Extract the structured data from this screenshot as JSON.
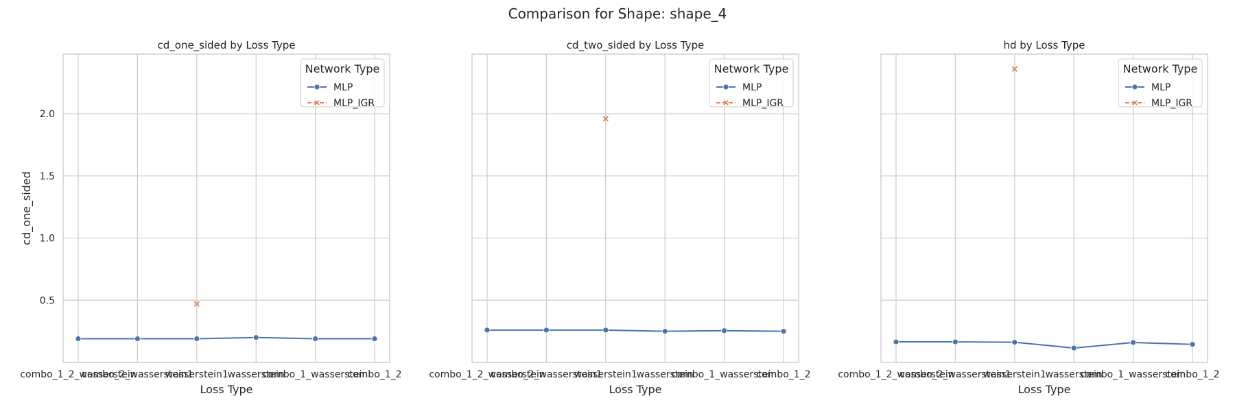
{
  "figure": {
    "title": "Comparison for Shape: shape_4"
  },
  "colors": {
    "MLP": "#4c72b0",
    "MLP_IGR": "#dd8452",
    "grid": "#cccccc",
    "frame": "#cccccc"
  },
  "chart_data": [
    {
      "type": "line",
      "title": "cd_one_sided by Loss Type",
      "xlabel": "Loss Type",
      "ylabel": "cd_one_sided",
      "categories": [
        "combo_1_2_wasserstein",
        "combo_2_wasserstein1",
        "wasserstein1",
        "wasserstein",
        "combo_1_wasserstein",
        "combo_1_2"
      ],
      "ylim": [
        0.0,
        2.48
      ],
      "yticks": [
        0.5,
        1.0,
        1.5,
        2.0
      ],
      "grid": true,
      "legend": {
        "title": "Network Type",
        "placement": "top-right"
      },
      "series": [
        {
          "name": "MLP",
          "marker": "circle",
          "values": [
            0.19,
            0.19,
            0.19,
            0.2,
            0.19,
            0.19
          ]
        },
        {
          "name": "MLP_IGR",
          "marker": "x",
          "values": [
            null,
            null,
            0.47,
            null,
            null,
            null
          ]
        }
      ]
    },
    {
      "type": "line",
      "title": "cd_two_sided by Loss Type",
      "xlabel": "Loss Type",
      "ylabel": "",
      "categories": [
        "combo_1_2_wasserstein",
        "combo_2_wasserstein1",
        "wasserstein1",
        "wasserstein",
        "combo_1_wasserstein",
        "combo_1_2"
      ],
      "ylim": [
        0.0,
        2.48
      ],
      "yticks": [
        0.5,
        1.0,
        1.5,
        2.0
      ],
      "grid": true,
      "legend": {
        "title": "Network Type",
        "placement": "top-right"
      },
      "series": [
        {
          "name": "MLP",
          "marker": "circle",
          "values": [
            0.26,
            0.26,
            0.26,
            0.25,
            0.255,
            0.25
          ]
        },
        {
          "name": "MLP_IGR",
          "marker": "x",
          "values": [
            null,
            null,
            1.96,
            null,
            null,
            null
          ]
        }
      ]
    },
    {
      "type": "line",
      "title": "hd by Loss Type",
      "xlabel": "Loss Type",
      "ylabel": "",
      "categories": [
        "combo_1_2_wasserstein",
        "combo_2_wasserstein1",
        "wasserstein1",
        "wasserstein",
        "combo_1_wasserstein",
        "combo_1_2"
      ],
      "ylim": [
        0.0,
        2.48
      ],
      "yticks": [
        0.5,
        1.0,
        1.5,
        2.0
      ],
      "grid": true,
      "legend": {
        "title": "Network Type",
        "placement": "top-right"
      },
      "series": [
        {
          "name": "MLP",
          "marker": "circle",
          "values": [
            0.165,
            0.165,
            0.162,
            0.115,
            0.16,
            0.145
          ]
        },
        {
          "name": "MLP_IGR",
          "marker": "x",
          "values": [
            null,
            null,
            2.36,
            null,
            null,
            null
          ]
        }
      ]
    }
  ]
}
